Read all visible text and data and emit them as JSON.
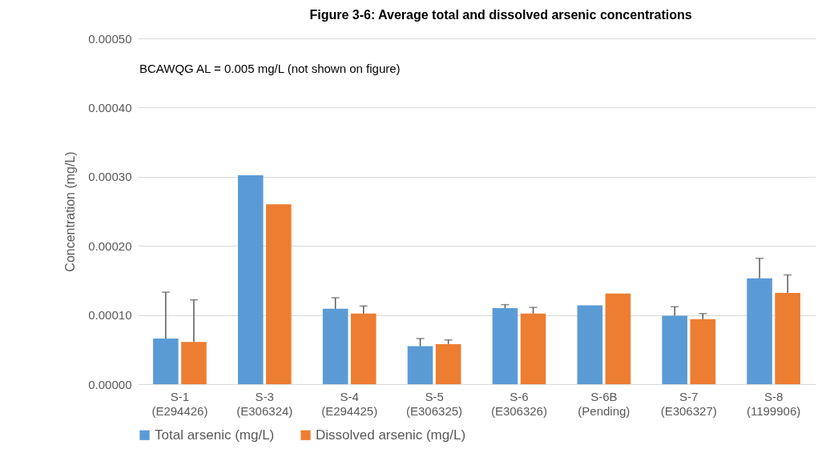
{
  "chart_data": {
    "type": "bar",
    "title": "Figure 3-6: Average total and dissolved arsenic concentrations",
    "ylabel": "Concentration (mg/L)",
    "categories": [
      "S-1\n(E294426)",
      "S-3\n(E306324)",
      "S-4\n(E294425)",
      "S-5\n(E306325)",
      "S-6\n(E306326)",
      "S-6B\n(Pending)",
      "S-7\n(E306327)",
      "S-8\n(1199906)"
    ],
    "series": [
      {
        "name": "Total arsenic (mg/L)",
        "color": "#5b9bd5",
        "values": [
          6.6e-05,
          0.000302,
          0.000109,
          5.5e-05,
          0.00011,
          0.000114,
          9.9e-05,
          0.000153
        ],
        "errors": [
          [
            6.6e-05,
            0.000133
          ],
          null,
          [
            0.000109,
            0.000125
          ],
          [
            5.5e-05,
            6.6e-05
          ],
          [
            0.00011,
            0.000115
          ],
          null,
          [
            9.9e-05,
            0.000112
          ],
          [
            0.000153,
            0.000182
          ]
        ]
      },
      {
        "name": "Dissolved arsenic (mg/L)",
        "color": "#ed7d31",
        "values": [
          6.1e-05,
          0.00026,
          0.000102,
          5.8e-05,
          0.000102,
          0.000131,
          9.4e-05,
          0.000132
        ],
        "errors": [
          [
            6.1e-05,
            0.000122
          ],
          null,
          [
            0.000102,
            0.000113
          ],
          [
            5.8e-05,
            6.4e-05
          ],
          [
            0.000102,
            0.000111
          ],
          null,
          [
            9.4e-05,
            0.000102
          ],
          [
            0.000132,
            0.000158
          ]
        ]
      }
    ],
    "ylim": [
      0,
      0.0005
    ],
    "yticks": [
      {
        "value": 0,
        "label": "0.00000"
      },
      {
        "value": 0.0001,
        "label": "0.00010"
      },
      {
        "value": 0.0002,
        "label": "0.00020"
      },
      {
        "value": 0.0003,
        "label": "0.00030"
      },
      {
        "value": 0.0004,
        "label": "0.00040"
      },
      {
        "value": 0.0005,
        "label": "0.00050"
      }
    ],
    "grid": "y",
    "legend": "bottom",
    "annotations": [
      "BCAWQG AL = 0.005 mg/L (not shown on figure)"
    ]
  }
}
